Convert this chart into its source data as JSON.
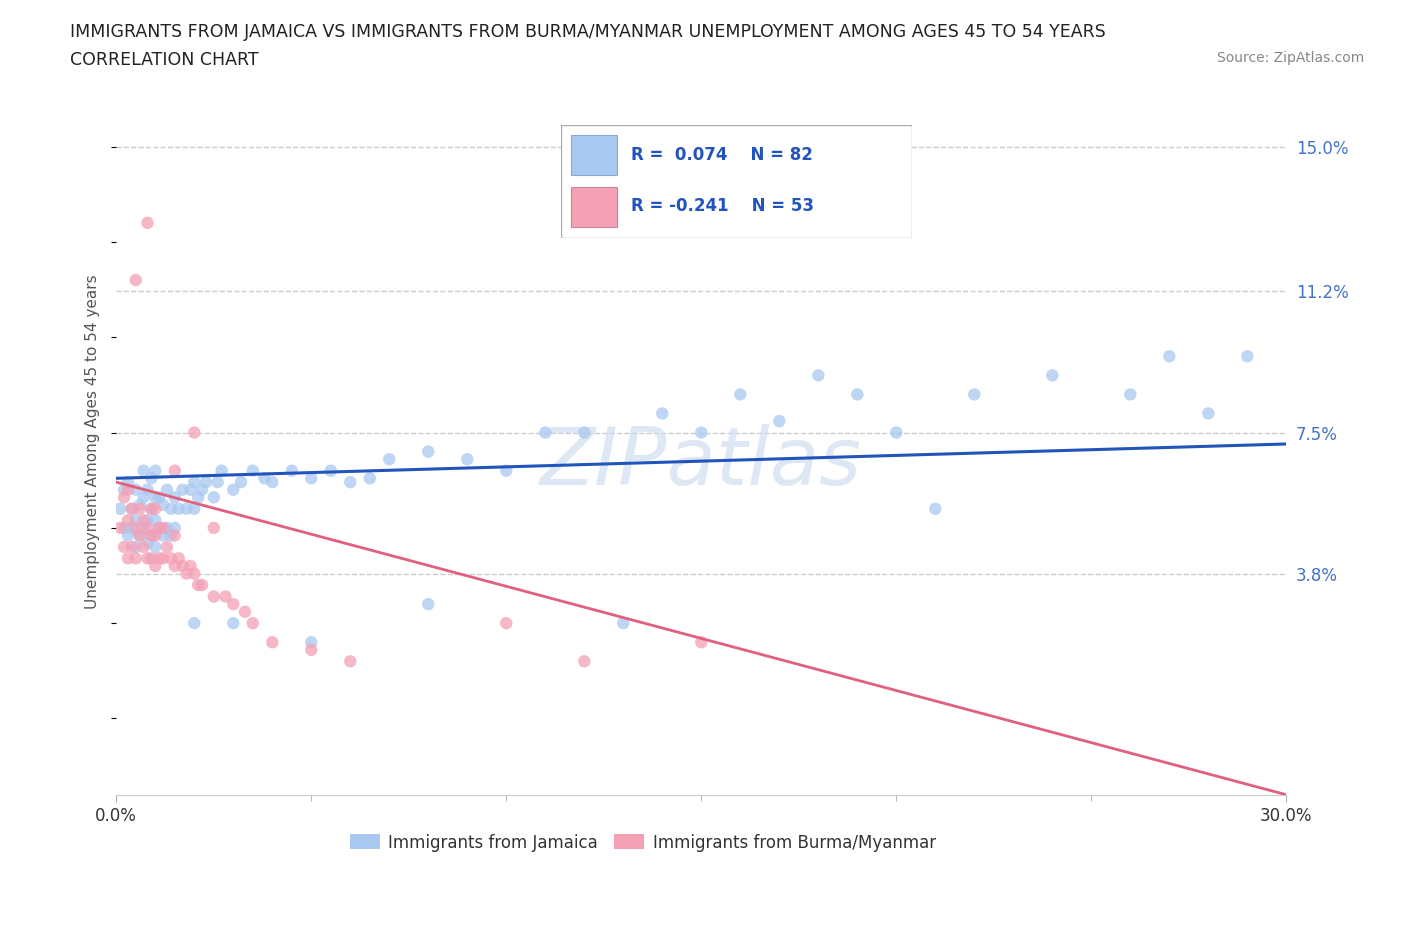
{
  "title_line1": "IMMIGRANTS FROM JAMAICA VS IMMIGRANTS FROM BURMA/MYANMAR UNEMPLOYMENT AMONG AGES 45 TO 54 YEARS",
  "title_line2": "CORRELATION CHART",
  "source_text": "Source: ZipAtlas.com",
  "ylabel": "Unemployment Among Ages 45 to 54 years",
  "xlim": [
    0.0,
    0.3
  ],
  "ylim": [
    -0.02,
    0.165
  ],
  "jamaica_color": "#a8c8f0",
  "burma_color": "#f4a0b5",
  "jamaica_line_color": "#2255bb",
  "burma_line_color": "#e06080",
  "jamaica_R": 0.074,
  "jamaica_N": 82,
  "burma_R": -0.241,
  "burma_N": 53,
  "jamaica_x": [
    0.001,
    0.002,
    0.002,
    0.003,
    0.003,
    0.004,
    0.004,
    0.005,
    0.005,
    0.005,
    0.006,
    0.006,
    0.007,
    0.007,
    0.007,
    0.008,
    0.008,
    0.008,
    0.009,
    0.009,
    0.009,
    0.01,
    0.01,
    0.01,
    0.01,
    0.011,
    0.011,
    0.012,
    0.012,
    0.013,
    0.013,
    0.014,
    0.014,
    0.015,
    0.015,
    0.016,
    0.017,
    0.018,
    0.019,
    0.02,
    0.02,
    0.021,
    0.022,
    0.023,
    0.025,
    0.026,
    0.027,
    0.03,
    0.032,
    0.035,
    0.038,
    0.04,
    0.045,
    0.05,
    0.055,
    0.06,
    0.065,
    0.07,
    0.08,
    0.09,
    0.1,
    0.11,
    0.12,
    0.14,
    0.15,
    0.16,
    0.17,
    0.18,
    0.19,
    0.2,
    0.22,
    0.24,
    0.26,
    0.27,
    0.28,
    0.29,
    0.02,
    0.03,
    0.05,
    0.08,
    0.13,
    0.21
  ],
  "jamaica_y": [
    0.055,
    0.05,
    0.06,
    0.048,
    0.062,
    0.05,
    0.055,
    0.045,
    0.052,
    0.06,
    0.048,
    0.056,
    0.05,
    0.058,
    0.065,
    0.046,
    0.052,
    0.06,
    0.048,
    0.055,
    0.063,
    0.045,
    0.052,
    0.058,
    0.065,
    0.05,
    0.058,
    0.048,
    0.056,
    0.05,
    0.06,
    0.048,
    0.055,
    0.05,
    0.058,
    0.055,
    0.06,
    0.055,
    0.06,
    0.055,
    0.062,
    0.058,
    0.06,
    0.062,
    0.058,
    0.062,
    0.065,
    0.06,
    0.062,
    0.065,
    0.063,
    0.062,
    0.065,
    0.063,
    0.065,
    0.062,
    0.063,
    0.068,
    0.07,
    0.068,
    0.065,
    0.075,
    0.075,
    0.08,
    0.075,
    0.085,
    0.078,
    0.09,
    0.085,
    0.075,
    0.085,
    0.09,
    0.085,
    0.095,
    0.08,
    0.095,
    0.025,
    0.025,
    0.02,
    0.03,
    0.025,
    0.055
  ],
  "burma_x": [
    0.001,
    0.002,
    0.002,
    0.003,
    0.003,
    0.003,
    0.004,
    0.004,
    0.005,
    0.005,
    0.006,
    0.006,
    0.007,
    0.007,
    0.008,
    0.008,
    0.009,
    0.009,
    0.009,
    0.01,
    0.01,
    0.011,
    0.011,
    0.012,
    0.012,
    0.013,
    0.014,
    0.015,
    0.015,
    0.016,
    0.017,
    0.018,
    0.019,
    0.02,
    0.021,
    0.022,
    0.025,
    0.028,
    0.03,
    0.033,
    0.035,
    0.04,
    0.05,
    0.06,
    0.1,
    0.12,
    0.15,
    0.02,
    0.008,
    0.005,
    0.01,
    0.015,
    0.025
  ],
  "burma_y": [
    0.05,
    0.045,
    0.058,
    0.042,
    0.052,
    0.06,
    0.045,
    0.055,
    0.042,
    0.05,
    0.048,
    0.055,
    0.045,
    0.052,
    0.042,
    0.05,
    0.042,
    0.048,
    0.055,
    0.04,
    0.048,
    0.042,
    0.05,
    0.042,
    0.05,
    0.045,
    0.042,
    0.04,
    0.048,
    0.042,
    0.04,
    0.038,
    0.04,
    0.038,
    0.035,
    0.035,
    0.032,
    0.032,
    0.03,
    0.028,
    0.025,
    0.02,
    0.018,
    0.015,
    0.025,
    0.015,
    0.02,
    0.075,
    0.13,
    0.115,
    0.055,
    0.065,
    0.05
  ]
}
